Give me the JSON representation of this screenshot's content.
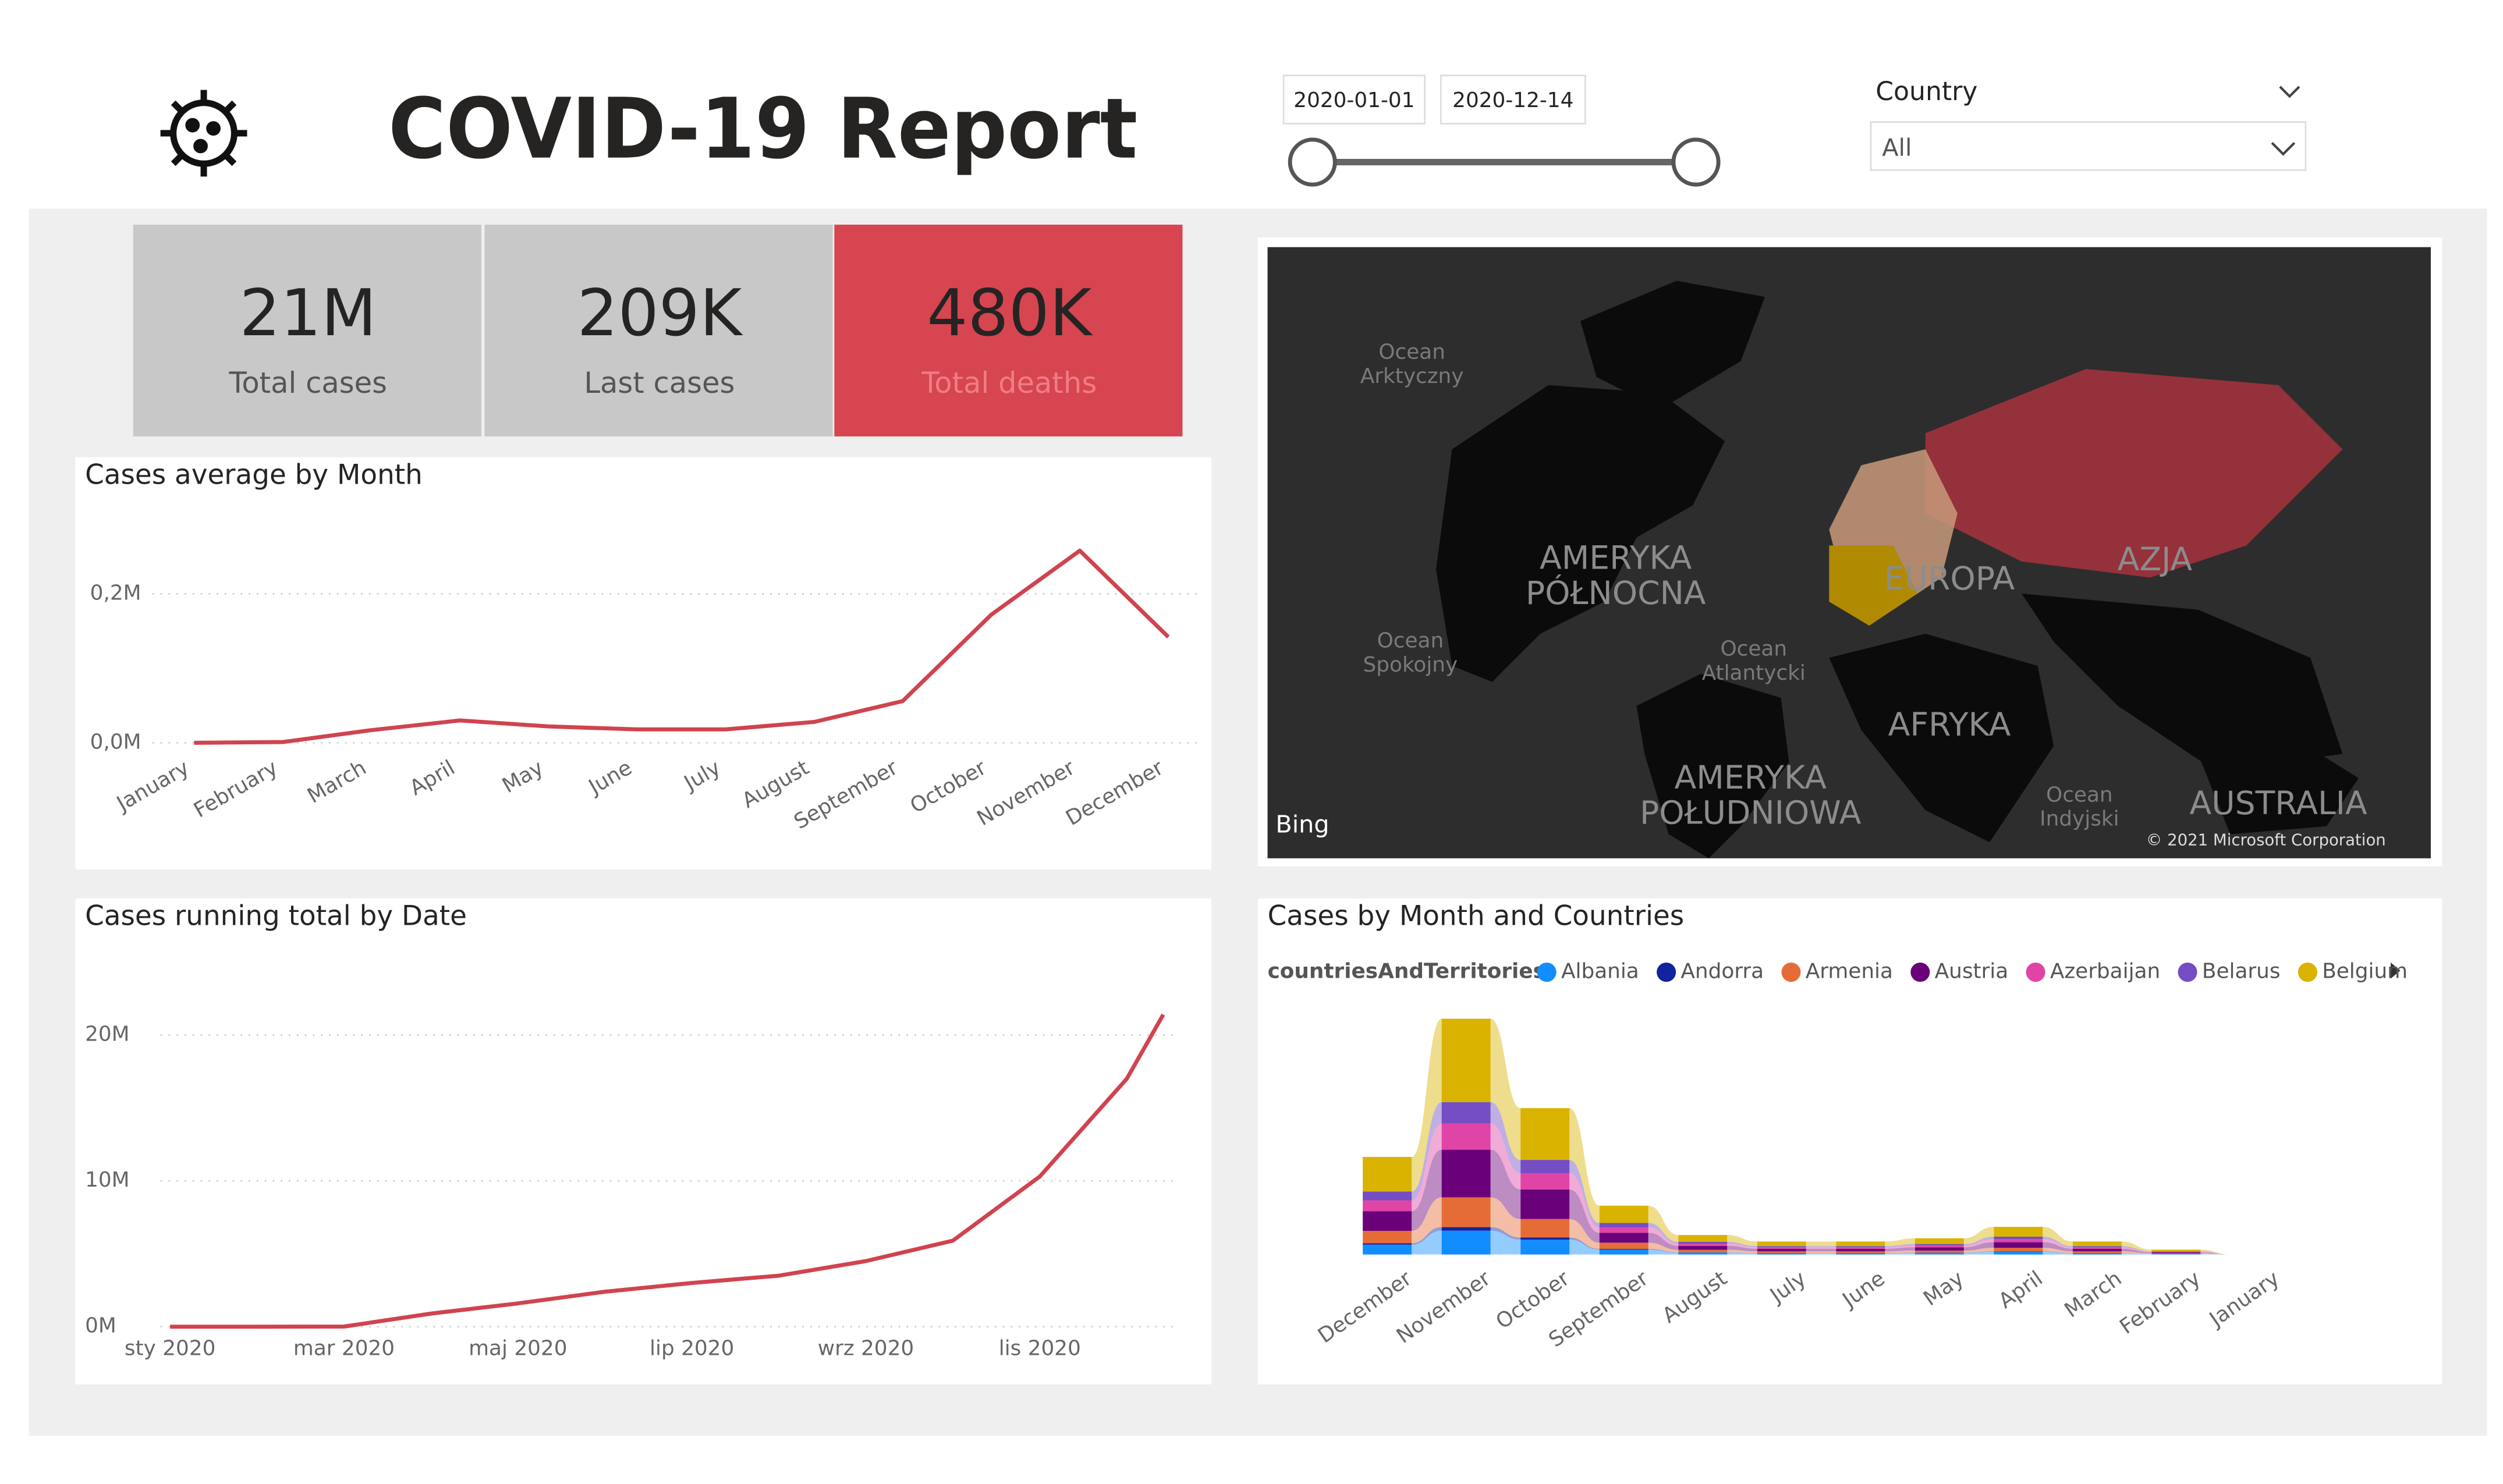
{
  "header": {
    "title": "COVID-19 Report",
    "date_start": "2020-01-01",
    "date_end": "2020-12-14",
    "filter_label": "Country",
    "filter_value": "All"
  },
  "kpis": [
    {
      "value": "21M",
      "label": "Total cases"
    },
    {
      "value": "209K",
      "label": "Last cases"
    },
    {
      "value": "480K",
      "label": "Total deaths"
    }
  ],
  "map": {
    "labels": [
      [
        "Ocean",
        "Arktyczny"
      ],
      [
        "AMERYKA",
        "PÓŁNOCNA"
      ],
      [
        "Ocean",
        "Spokojny"
      ],
      [
        "Ocean",
        "Atlantycki"
      ],
      [
        "EUROPA"
      ],
      [
        "AZJA"
      ],
      [
        "AFRYKA"
      ],
      [
        "AMERYKA",
        "POŁUDNIOWA"
      ],
      [
        "Ocean",
        "Indyjski"
      ],
      [
        "AUSTRALIA"
      ]
    ],
    "provider": "Bing",
    "copyright": "© 2021 Microsoft Corporation"
  },
  "chart_data": [
    {
      "type": "line",
      "title": "Cases average by Month",
      "categories": [
        "January",
        "February",
        "March",
        "April",
        "May",
        "June",
        "July",
        "August",
        "September",
        "October",
        "November",
        "December"
      ],
      "values": [
        0,
        0.001,
        0.017,
        0.03,
        0.022,
        0.018,
        0.018,
        0.028,
        0.056,
        0.172,
        0.258,
        0.142
      ],
      "color": "#d0434f",
      "ylim": [
        0,
        0.28
      ],
      "yticks": [
        {
          "value": 0,
          "label": "0,0M"
        },
        {
          "value": 0.2,
          "label": "0,2M"
        }
      ],
      "grid": true
    },
    {
      "type": "line",
      "title": "Cases running total by Date",
      "x": [
        "2020-01",
        "2020-02",
        "2020-03",
        "2020-04",
        "2020-05",
        "2020-06",
        "2020-07",
        "2020-08",
        "2020-09",
        "2020-10",
        "2020-11",
        "2020-12",
        "2020-12-14"
      ],
      "values": [
        0,
        0,
        0.01,
        0.9,
        1.6,
        2.4,
        3.0,
        3.5,
        4.5,
        5.9,
        10.3,
        17.0,
        21.4
      ],
      "color": "#d0434f",
      "xlim": [
        "2020-01",
        "2020-12-14"
      ],
      "xticks": [
        {
          "value": "2020-01",
          "label": "sty 2020"
        },
        {
          "value": "2020-03",
          "label": "mar 2020"
        },
        {
          "value": "2020-05",
          "label": "maj 2020"
        },
        {
          "value": "2020-07",
          "label": "lip 2020"
        },
        {
          "value": "2020-09",
          "label": "wrz 2020"
        },
        {
          "value": "2020-11",
          "label": "lis 2020"
        }
      ],
      "ylim": [
        0,
        22
      ],
      "yticks": [
        {
          "value": 0,
          "label": "0M"
        },
        {
          "value": 10,
          "label": "10M"
        },
        {
          "value": 20,
          "label": "20M"
        }
      ],
      "grid": true
    },
    {
      "type": "ribbon",
      "title": "Cases by Month and Countries",
      "legend_title": "countriesAndTerritories",
      "categories": [
        "December",
        "November",
        "October",
        "September",
        "August",
        "July",
        "June",
        "May",
        "April",
        "March",
        "February",
        "January"
      ],
      "series": [
        {
          "name": "Albania",
          "color": "#118dff",
          "values": [
            12000,
            29000,
            18000,
            6000,
            2400,
            1600,
            1600,
            2000,
            3400,
            1600,
            600,
            0
          ]
        },
        {
          "name": "Andorra",
          "color": "#12239e",
          "values": [
            1800,
            4350,
            2700,
            900,
            360,
            240,
            240,
            300,
            510,
            240,
            90,
            0
          ]
        },
        {
          "name": "Armenia",
          "color": "#e66c37",
          "values": [
            15000,
            36250,
            22500,
            7500,
            3000,
            2000,
            2000,
            2500,
            4250,
            2000,
            750,
            0
          ]
        },
        {
          "name": "Austria",
          "color": "#6b007b",
          "values": [
            24000,
            58000,
            36000,
            12000,
            4800,
            3200,
            3200,
            4000,
            6800,
            3200,
            1200,
            0
          ]
        },
        {
          "name": "Azerbaijan",
          "color": "#e044a7",
          "values": [
            13200,
            31900,
            19800,
            6600,
            2640,
            1760,
            1760,
            2200,
            3740,
            1760,
            660,
            0
          ]
        },
        {
          "name": "Belarus",
          "color": "#744ec2",
          "values": [
            10800,
            26100,
            16200,
            5400,
            2160,
            1440,
            1440,
            1800,
            3060,
            1440,
            540,
            0
          ]
        },
        {
          "name": "Belgium",
          "color": "#d9b300",
          "values": [
            42000,
            101500,
            63000,
            21000,
            8400,
            5600,
            5600,
            7000,
            11900,
            5600,
            2100,
            0
          ]
        }
      ]
    }
  ]
}
